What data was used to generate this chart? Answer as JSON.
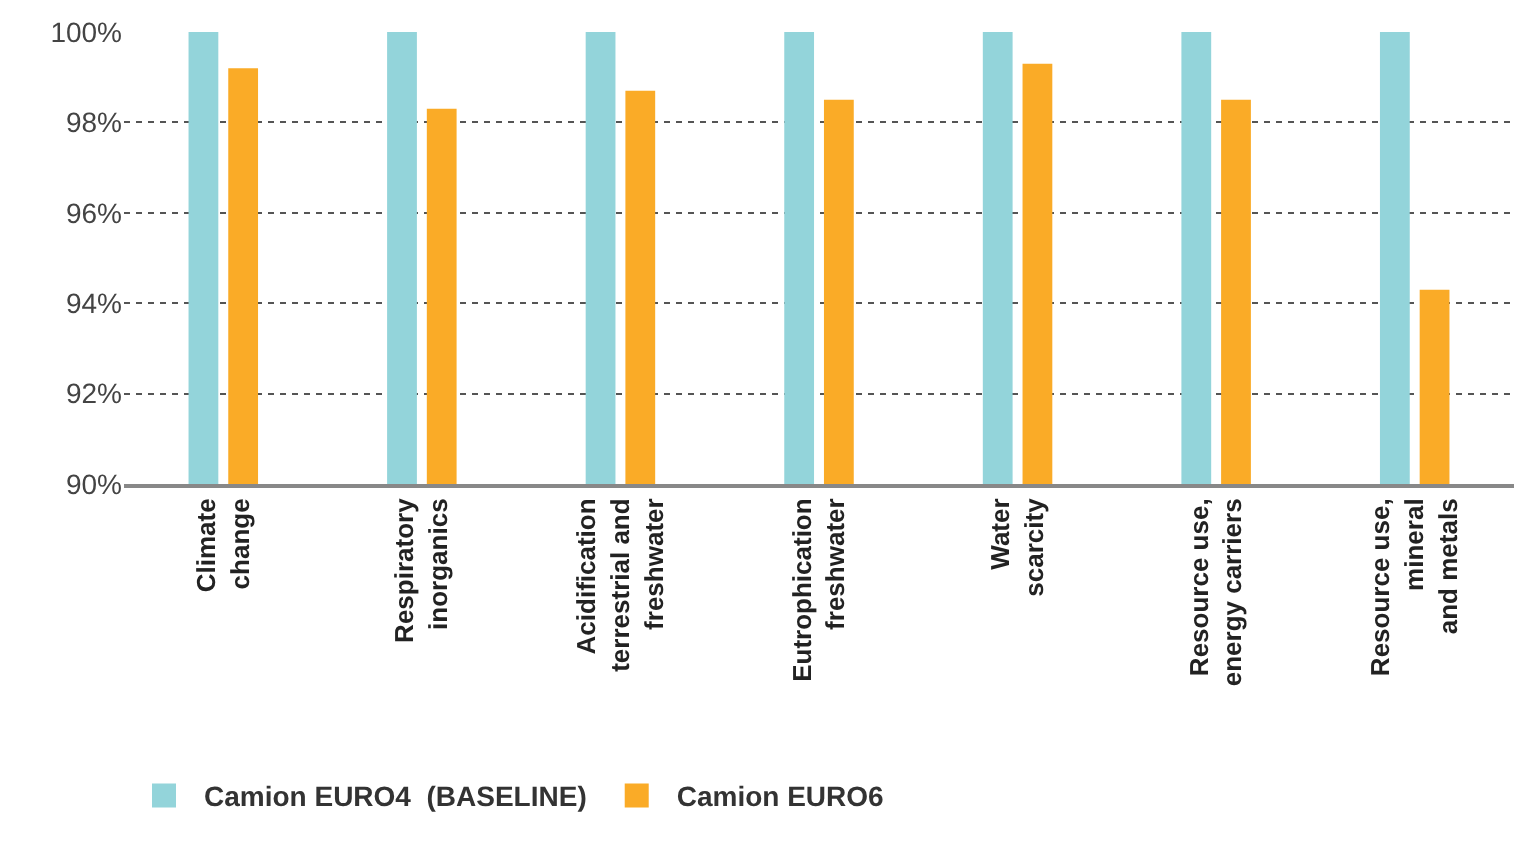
{
  "chart_data": {
    "type": "bar",
    "categories": [
      "Climate\nchange",
      "Respiratory\ninorganics",
      "Acidification\nterrestrial and\nfreshwater",
      "Eutrophication\nfreshwater",
      "Water\nscarcity",
      "Resource use,\nenergy carriers",
      "Resource use,\nmineral\nand metals"
    ],
    "series": [
      {
        "name": "Camion EURO4  (BASELINE)",
        "color": "#93d4da",
        "values": [
          100,
          100,
          100,
          100,
          100,
          100,
          100
        ]
      },
      {
        "name": "Camion EURO6",
        "color": "#faab27",
        "values": [
          99.2,
          98.3,
          98.7,
          98.5,
          99.3,
          98.5,
          94.3
        ]
      }
    ],
    "ylim": [
      90,
      100
    ],
    "yticks": [
      {
        "value": 90,
        "label": "90%"
      },
      {
        "value": 92,
        "label": "92%"
      },
      {
        "value": 94,
        "label": "94%"
      },
      {
        "value": 96,
        "label": "96%"
      },
      {
        "value": 98,
        "label": "98%"
      },
      {
        "value": 100,
        "label": "100%"
      }
    ],
    "grid": "y",
    "legend": "bottom left"
  }
}
